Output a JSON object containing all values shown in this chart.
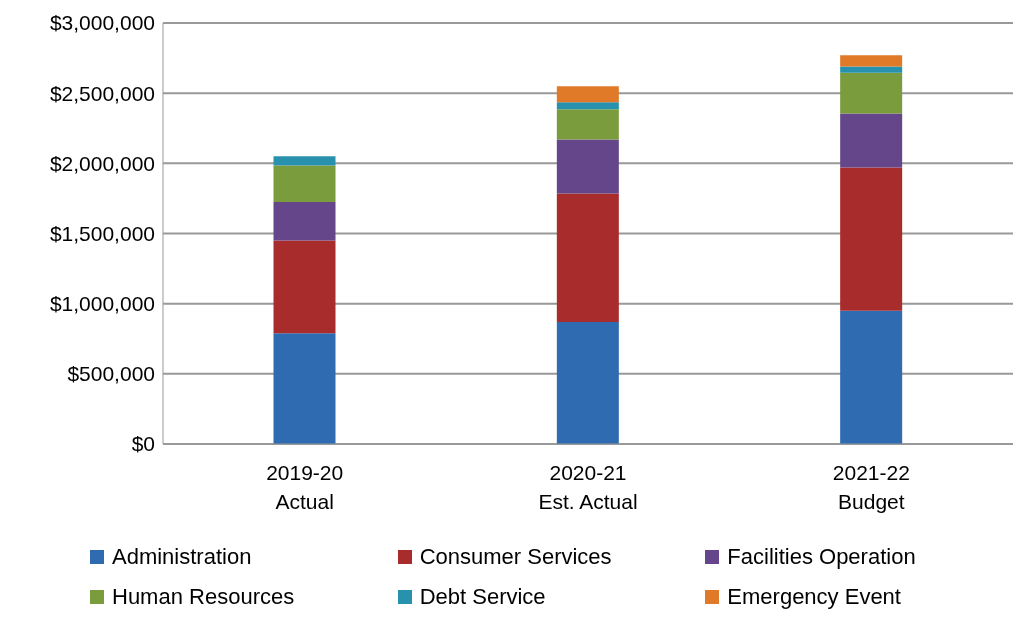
{
  "chart_data": {
    "type": "bar",
    "stacked": true,
    "categories": [
      "2019-20\nActual",
      "2020-21\nEst. Actual",
      "2021-22\nBudget"
    ],
    "series": [
      {
        "name": "Administration",
        "color": "#2e6bb0",
        "values": [
          790000,
          870000,
          950000
        ]
      },
      {
        "name": "Consumer Services",
        "color": "#a82c2c",
        "values": [
          660000,
          915000,
          1020000
        ]
      },
      {
        "name": "Facilities Operation",
        "color": "#65468a",
        "values": [
          275000,
          385000,
          385000
        ]
      },
      {
        "name": "Human Resources",
        "color": "#7a9c3c",
        "values": [
          260000,
          215000,
          290000
        ]
      },
      {
        "name": "Debt Service",
        "color": "#2892ae",
        "values": [
          65000,
          50000,
          45000
        ]
      },
      {
        "name": "Emergency Event",
        "color": "#e07a28",
        "values": [
          0,
          115000,
          80000
        ]
      }
    ],
    "ylim": [
      0,
      3000000
    ],
    "yticks": [
      {
        "value": 0,
        "label": "$0"
      },
      {
        "value": 500000,
        "label": "$500,000"
      },
      {
        "value": 1000000,
        "label": "$1,000,000"
      },
      {
        "value": 1500000,
        "label": "$1,500,000"
      },
      {
        "value": 2000000,
        "label": "$2,000,000"
      },
      {
        "value": 2500000,
        "label": "$2,500,000"
      },
      {
        "value": 3000000,
        "label": "$3,000,000"
      }
    ],
    "grid": "y",
    "legend": "bottom"
  }
}
